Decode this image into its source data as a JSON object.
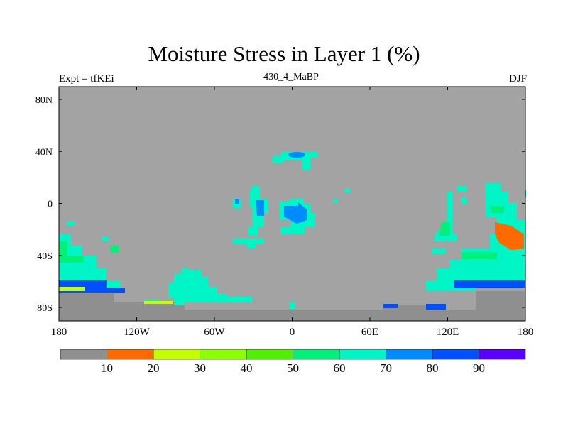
{
  "title": "Moisture Stress in Layer 1 (%)",
  "experiment_label": "Expt = tfKEi",
  "subtitle": "430_4_MaBP",
  "season": "DJF",
  "axes": {
    "lon_ticks": [
      "180",
      "120W",
      "60W",
      "0",
      "60E",
      "120E",
      "180"
    ],
    "lat_ticks": [
      "80N",
      "40N",
      "0",
      "40S",
      "80S"
    ]
  },
  "colorbar": {
    "labels": [
      "10",
      "20",
      "30",
      "40",
      "50",
      "60",
      "70",
      "80",
      "90"
    ],
    "colors": [
      "#8f8f8f",
      "#ff6a00",
      "#c4ff00",
      "#8cff00",
      "#50f000",
      "#00f07a",
      "#00f5c6",
      "#008cff",
      "#0050ff",
      "#5a00ff",
      "#8a00ff"
    ]
  },
  "colors": {
    "background_field": "#a3a3a3",
    "land_ice": "#8f8f8f"
  }
}
